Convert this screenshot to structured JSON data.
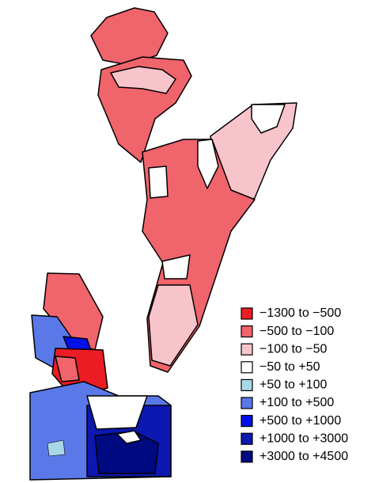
{
  "legend": {
    "items": [
      {
        "label": "−1300 to −500",
        "color": "#ec1c24"
      },
      {
        "label": "−500 to −100",
        "color": "#f0646c"
      },
      {
        "label": "−100 to −50",
        "color": "#f8c4cc"
      },
      {
        "label": "−50 to +50",
        "color": "#ffffff"
      },
      {
        "label": "+50 to +100",
        "color": "#a8d8e8"
      },
      {
        "label": "+100 to +500",
        "color": "#5a78e8"
      },
      {
        "label": "+500 to +1000",
        "color": "#0010e8"
      },
      {
        "label": "+1000 to +3000",
        "color": "#0c18b0"
      },
      {
        "label": "+3000 to +4500",
        "color": "#000a80"
      }
    ]
  }
}
